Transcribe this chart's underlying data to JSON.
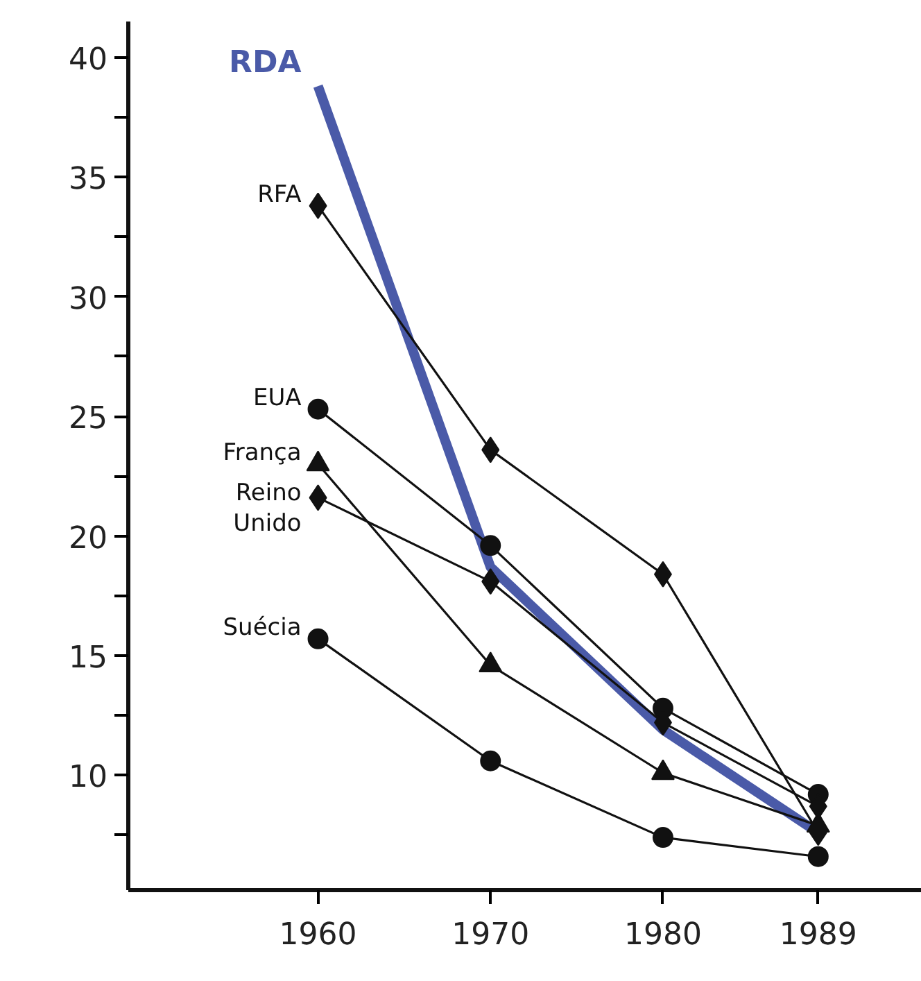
{
  "chart_data": {
    "type": "line",
    "x": [
      1960,
      1970,
      1980,
      1989
    ],
    "series": [
      {
        "name": "RDA",
        "color": "#4a5aa8",
        "values": [
          38.8,
          18.7,
          11.9,
          7.6
        ],
        "marker": "none"
      },
      {
        "name": "RFA",
        "color": "#111111",
        "values": [
          33.8,
          23.6,
          18.4,
          7.6
        ],
        "marker": "diamond"
      },
      {
        "name": "EUA",
        "color": "#111111",
        "values": [
          25.3,
          19.6,
          12.8,
          9.2
        ],
        "marker": "circle"
      },
      {
        "name": "França",
        "color": "#111111",
        "values": [
          23.0,
          14.6,
          10.1,
          7.9
        ],
        "marker": "triangle"
      },
      {
        "name": "Reino Unido",
        "color": "#111111",
        "values": [
          21.6,
          18.1,
          12.2,
          8.7
        ],
        "marker": "diamond"
      },
      {
        "name": "Suécia",
        "color": "#111111",
        "values": [
          15.7,
          10.6,
          7.4,
          6.6
        ],
        "marker": "circle"
      }
    ],
    "xlim": [
      1949,
      1995
    ],
    "ylim": [
      5.2,
      41.5
    ],
    "xticks": [
      1960,
      1970,
      1980,
      1989
    ],
    "yticks": [
      {
        "value": 7.5,
        "label": null
      },
      10,
      {
        "value": 12.5,
        "label": null
      },
      15,
      {
        "value": 17.5,
        "label": null
      },
      20,
      {
        "value": 22.5,
        "label": null
      },
      25,
      {
        "value": 27.5,
        "label": null
      },
      30,
      {
        "value": 32.5,
        "label": null
      },
      35,
      {
        "value": 37.5,
        "label": null
      },
      40
    ],
    "grid": false,
    "line_style": "solid"
  }
}
